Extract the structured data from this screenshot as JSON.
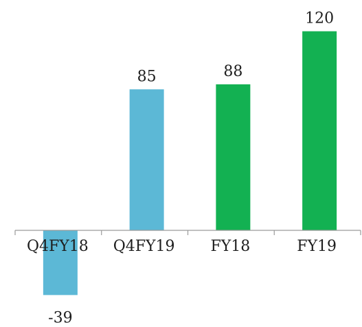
{
  "chart_data": {
    "type": "bar",
    "title": "",
    "xlabel": "",
    "ylabel": "",
    "categories": [
      "Q4FY18",
      "Q4FY19",
      "FY18",
      "FY19"
    ],
    "values": [
      -39,
      85,
      88,
      120
    ],
    "colors": [
      "#5cb8d6",
      "#5cb8d6",
      "#13b152",
      "#13b152"
    ],
    "ylim": [
      -39,
      120
    ],
    "grid": false,
    "legend": "none",
    "data_labels": true
  }
}
